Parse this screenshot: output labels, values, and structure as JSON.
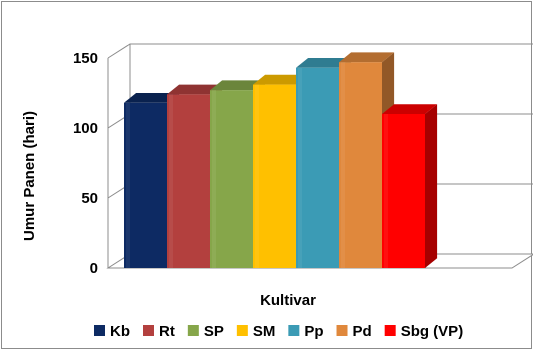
{
  "chart_data": {
    "type": "bar",
    "title": "",
    "xlabel": "Kultivar",
    "ylabel": "Umur Panen (hari)",
    "ylim": [
      0,
      150
    ],
    "yticks": [
      "0",
      "50",
      "100",
      "150"
    ],
    "grid": true,
    "legend_position": "bottom",
    "categories": [
      "Kb",
      "Rt",
      "SP",
      "SM",
      "Pp",
      "Pd",
      "Sbg (VP)"
    ],
    "values": [
      118,
      124,
      127,
      131,
      143,
      147,
      110
    ],
    "colors": [
      "#0d2a63",
      "#b3403e",
      "#86a64a",
      "#ffc000",
      "#3b9bb5",
      "#e0883c",
      "#ff0000"
    ]
  }
}
